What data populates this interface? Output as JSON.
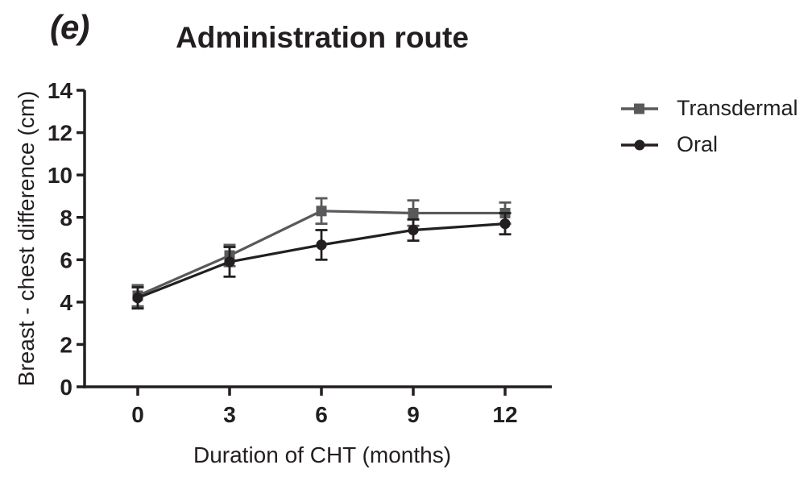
{
  "panel_label": "(e)",
  "colors": {
    "text": "#231f20",
    "axis": "#231f20",
    "transdermal": "#58595b",
    "oral": "#231f20",
    "background": "#ffffff"
  },
  "chart_data": {
    "type": "line",
    "title": "Administration route",
    "xlabel": "Duration of CHT (months)",
    "ylabel": "Breast - chest difference (cm)",
    "x": [
      0,
      3,
      6,
      9,
      12
    ],
    "x_ticks": [
      0,
      3,
      6,
      9,
      12
    ],
    "y_ticks": [
      0,
      2,
      4,
      6,
      8,
      10,
      12,
      14
    ],
    "xlim": [
      0,
      12
    ],
    "ylim": [
      0,
      14
    ],
    "grid": false,
    "error_bars": true,
    "legend_position": "right",
    "series": [
      {
        "name": "Transdermal",
        "marker": "square",
        "color": "#58595b",
        "values": [
          4.3,
          6.2,
          8.3,
          8.2,
          8.2
        ],
        "errors": [
          0.5,
          0.5,
          0.6,
          0.6,
          0.5
        ]
      },
      {
        "name": "Oral",
        "marker": "circle",
        "color": "#231f20",
        "values": [
          4.2,
          5.9,
          6.7,
          7.4,
          7.7
        ],
        "errors": [
          0.5,
          0.7,
          0.7,
          0.5,
          0.5
        ]
      }
    ]
  }
}
